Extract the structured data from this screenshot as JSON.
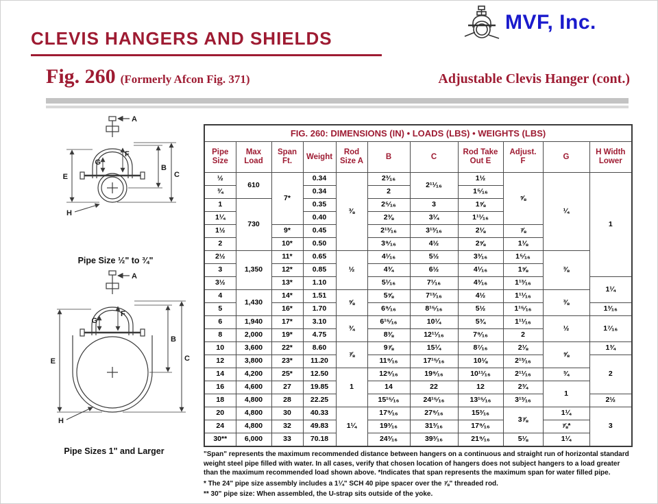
{
  "colors": {
    "accent": "#9e1b32",
    "brand_blue": "#1a1acc",
    "grid": "#4a4a4a"
  },
  "header": {
    "company": "MVF, Inc.",
    "title": "CLEVIS HANGERS AND SHIELDS",
    "fig": "Fig. 260",
    "fig_note": "(Formerly Afcon Fig. 371)",
    "subtitle": "Adjustable Clevis Hanger (cont.)"
  },
  "diagrams": {
    "labels": {
      "a": "A",
      "b": "B",
      "c": "C",
      "e": "E",
      "f": "F",
      "g": "G",
      "h": "H"
    },
    "caption_small": "Pipe Size ½\" to ¾\"",
    "caption_large": "Pipe Sizes 1\" and Larger"
  },
  "table": {
    "title": "FIG. 260: DIMENSIONS (IN) • LOADS (LBS) • WEIGHTS (LBS)",
    "headers": [
      "Pipe\nSize",
      "Max\nLoad",
      "Span\nFt.",
      "Weight",
      "Rod\nSize A",
      "B",
      "C",
      "Rod Take\nOut E",
      "Adjust.\nF",
      "G",
      "H Width\nLower"
    ],
    "rows": [
      [
        {
          "t": "½"
        },
        {
          "t": "610",
          "rs": 2
        },
        {
          "t": "7*",
          "rs": 4
        },
        {
          "t": "0.34"
        },
        {
          "t": "⅜",
          "rs": 6
        },
        {
          "t": "2³⁄₁₆"
        },
        {
          "t": "2¹¹⁄₁₆",
          "rs": 2
        },
        {
          "t": "1½"
        },
        {
          "t": "⅝",
          "rs": 4
        },
        {
          "t": "¼",
          "rs": 6
        },
        {
          "t": "1",
          "rs": 8
        }
      ],
      [
        {
          "t": "¾"
        },
        {
          "t": "0.34"
        },
        {
          "t": "2"
        },
        {
          "t": "1⁵⁄₁₆"
        }
      ],
      [
        {
          "t": "1"
        },
        {
          "t": "730",
          "rs": 4
        },
        {
          "t": "0.35"
        },
        {
          "t": "2⁵⁄₁₆"
        },
        {
          "t": "3"
        },
        {
          "t": "1⅝"
        }
      ],
      [
        {
          "t": "1¼"
        },
        {
          "t": "0.40"
        },
        {
          "t": "2⅜"
        },
        {
          "t": "3¼"
        },
        {
          "t": "1¹¹⁄₁₆"
        }
      ],
      [
        {
          "t": "1½"
        },
        {
          "t": "9*"
        },
        {
          "t": "0.45"
        },
        {
          "t": "2¹³⁄₁₆"
        },
        {
          "t": "3¹³⁄₁₆"
        },
        {
          "t": "2⅛"
        },
        {
          "t": "⅞"
        }
      ],
      [
        {
          "t": "2"
        },
        {
          "t": "10*"
        },
        {
          "t": "0.50"
        },
        {
          "t": "3⁹⁄₁₆"
        },
        {
          "t": "4½"
        },
        {
          "t": "2⅝"
        },
        {
          "t": "1⅛"
        }
      ],
      [
        {
          "t": "2½"
        },
        {
          "t": "1,350",
          "rs": 3
        },
        {
          "t": "11*"
        },
        {
          "t": "0.65"
        },
        {
          "t": "½",
          "rs": 3
        },
        {
          "t": "4¹⁄₁₆"
        },
        {
          "t": "5½"
        },
        {
          "t": "3³⁄₁₆"
        },
        {
          "t": "1⁵⁄₁₆"
        },
        {
          "t": "⅜",
          "rs": 3
        }
      ],
      [
        {
          "t": "3"
        },
        {
          "t": "12*"
        },
        {
          "t": "0.85"
        },
        {
          "t": "4¾"
        },
        {
          "t": "6½"
        },
        {
          "t": "4¹⁄₁₆"
        },
        {
          "t": "1⅝"
        }
      ],
      [
        {
          "t": "3½"
        },
        {
          "t": "13*"
        },
        {
          "t": "1.10"
        },
        {
          "t": "5¹⁄₁₆"
        },
        {
          "t": "7¹⁄₁₆"
        },
        {
          "t": "4³⁄₁₆"
        },
        {
          "t": "1¹³⁄₁₆"
        },
        {
          "t": "1¼",
          "rs": 2
        }
      ],
      [
        {
          "t": "4"
        },
        {
          "t": "1,430",
          "rs": 2
        },
        {
          "t": "14*"
        },
        {
          "t": "1.51"
        },
        {
          "t": "⅝",
          "rs": 2
        },
        {
          "t": "5⅝"
        },
        {
          "t": "7¹³⁄₁₆"
        },
        {
          "t": "4½"
        },
        {
          "t": "1¹¹⁄₁₆"
        },
        {
          "t": "⅜",
          "rs": 2
        }
      ],
      [
        {
          "t": "5"
        },
        {
          "t": "16*"
        },
        {
          "t": "1.70"
        },
        {
          "t": "6⁹⁄₁₆"
        },
        {
          "t": "8¹⁵⁄₁₆"
        },
        {
          "t": "5½"
        },
        {
          "t": "1¹⁵⁄₁₆"
        },
        {
          "t": "1³⁄₁₆"
        }
      ],
      [
        {
          "t": "6"
        },
        {
          "t": "1,940"
        },
        {
          "t": "17*"
        },
        {
          "t": "3.10"
        },
        {
          "t": "¾",
          "rs": 2
        },
        {
          "t": "6¹⁵⁄₁₆"
        },
        {
          "t": "10¼"
        },
        {
          "t": "5¾"
        },
        {
          "t": "1¹¹⁄₁₆"
        },
        {
          "t": "½",
          "rs": 2
        },
        {
          "t": "1⁷⁄₁₆",
          "rs": 2
        }
      ],
      [
        {
          "t": "8"
        },
        {
          "t": "2,000"
        },
        {
          "t": "19*"
        },
        {
          "t": "4.75"
        },
        {
          "t": "8⅜"
        },
        {
          "t": "12¹¹⁄₁₆"
        },
        {
          "t": "7⁹⁄₁₆"
        },
        {
          "t": "2"
        }
      ],
      [
        {
          "t": "10"
        },
        {
          "t": "3,600"
        },
        {
          "t": "22*"
        },
        {
          "t": "8.60"
        },
        {
          "t": "⅞",
          "rs": 2
        },
        {
          "t": "9⅞"
        },
        {
          "t": "15¼"
        },
        {
          "t": "8⁷⁄₁₆"
        },
        {
          "t": "2⅛"
        },
        {
          "t": "⅝",
          "rs": 2
        },
        {
          "t": "1¾"
        }
      ],
      [
        {
          "t": "12"
        },
        {
          "t": "3,800"
        },
        {
          "t": "23*"
        },
        {
          "t": "11.20"
        },
        {
          "t": "11⁹⁄₁₆"
        },
        {
          "t": "17¹⁵⁄₁₆"
        },
        {
          "t": "10⅛"
        },
        {
          "t": "2¹³⁄₁₆"
        },
        {
          "t": "2",
          "rs": 3
        }
      ],
      [
        {
          "t": "14"
        },
        {
          "t": "4,200"
        },
        {
          "t": "25*"
        },
        {
          "t": "12.50"
        },
        {
          "t": "1",
          "rs": 3
        },
        {
          "t": "12⁹⁄₁₆"
        },
        {
          "t": "19⁹⁄₁₆"
        },
        {
          "t": "10¹¹⁄₁₆"
        },
        {
          "t": "2¹¹⁄₁₆"
        },
        {
          "t": "¾"
        }
      ],
      [
        {
          "t": "16"
        },
        {
          "t": "4,600"
        },
        {
          "t": "27"
        },
        {
          "t": "19.85"
        },
        {
          "t": "14"
        },
        {
          "t": "22"
        },
        {
          "t": "12"
        },
        {
          "t": "2¾"
        },
        {
          "t": "1",
          "rs": 2
        }
      ],
      [
        {
          "t": "18"
        },
        {
          "t": "4,800"
        },
        {
          "t": "28"
        },
        {
          "t": "22.25"
        },
        {
          "t": "15¹⁵⁄₁₆"
        },
        {
          "t": "24¹⁵⁄₁₆"
        },
        {
          "t": "13¹⁵⁄₁₆"
        },
        {
          "t": "3¹³⁄₁₆"
        },
        {
          "t": "2½"
        }
      ],
      [
        {
          "t": "20"
        },
        {
          "t": "4,800"
        },
        {
          "t": "30"
        },
        {
          "t": "40.33"
        },
        {
          "t": "1¼",
          "rs": 3
        },
        {
          "t": "17⁹⁄₁₆"
        },
        {
          "t": "27⁹⁄₁₆"
        },
        {
          "t": "15³⁄₁₆"
        },
        {
          "t": "3⅞",
          "rs": 2
        },
        {
          "t": "1¼"
        },
        {
          "t": "3",
          "rs": 3
        }
      ],
      [
        {
          "t": "24"
        },
        {
          "t": "4,800"
        },
        {
          "t": "32"
        },
        {
          "t": "49.83"
        },
        {
          "t": "19³⁄₁₆"
        },
        {
          "t": "31³⁄₁₆"
        },
        {
          "t": "17⁹⁄₁₆"
        },
        {
          "t": "⅞*"
        }
      ],
      [
        {
          "t": "30**"
        },
        {
          "t": "6,000"
        },
        {
          "t": "33"
        },
        {
          "t": "70.18"
        },
        {
          "t": "24³⁄₁₆"
        },
        {
          "t": "39³⁄₁₆"
        },
        {
          "t": "21⁹⁄₁₆"
        },
        {
          "t": "5⅛"
        },
        {
          "t": "1¼"
        }
      ]
    ]
  },
  "notes": [
    "\"Span\" represents the maximum recommended distance between hangers on a continuous and straight run of horizontal standard weight steel pipe filled with water. In all cases, verify that chosen location of hangers does not subject hangers to a load greater than the maximum recommended load shown above. *Indicates that span represents the maximum span for water filled pipe.",
    "* The 24\" pipe size assembly includes a 1¼\" SCH 40 pipe spacer over the ⅞\" threaded rod.",
    "** 30\" pipe size: When assembled, the U-strap sits outside of the yoke."
  ]
}
